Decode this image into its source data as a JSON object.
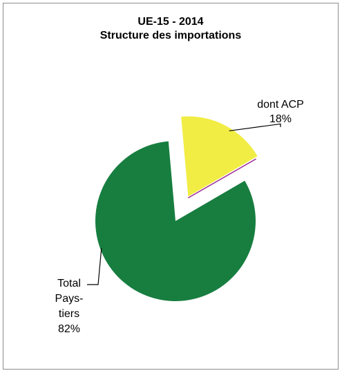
{
  "chart_data": {
    "type": "pie",
    "title": "UE-15 - 2014",
    "subtitle": "Structure des importations",
    "slices": [
      {
        "label_lines": [
          "Total",
          "Pays-",
          "tiers"
        ],
        "value_label": "82%",
        "value": 82,
        "color": "#177e40",
        "exploded": false
      },
      {
        "label_lines": [
          "dont ACP"
        ],
        "value_label": "18%",
        "value": 18,
        "color": "#f1ed44",
        "exploded": true
      }
    ],
    "accent_line_color": "#a0379c"
  }
}
